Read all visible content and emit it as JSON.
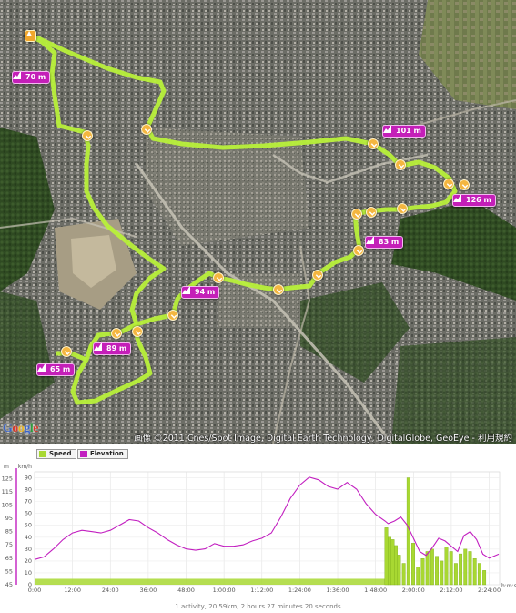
{
  "map": {
    "credit": "画像 ©2011 Cnes/Spot Image, Digital Earth Technology, DigitalGlobe, GeoEye - 利用規約",
    "logo": "Google",
    "route_color": "#b8f03a",
    "elevation_labels": [
      {
        "text": "70 m"
      },
      {
        "text": "101 m"
      },
      {
        "text": "126 m"
      },
      {
        "text": "83 m"
      },
      {
        "text": "94 m"
      },
      {
        "text": "89 m"
      },
      {
        "text": "65 m"
      }
    ],
    "icons": {
      "start": "start-icon",
      "km": "checkpoint-icon",
      "elevation": "elevation-icon"
    }
  },
  "chart": {
    "legend": {
      "speed": "Speed",
      "elevation": "Elevation"
    },
    "summary": "1 activity, 20.59km, 2 hours 27 minutes 20 seconds",
    "colors": {
      "speed": "#a8d832",
      "elevation": "#c21fc0",
      "elev_axis": "#c21fc0"
    }
  },
  "chart_data": {
    "type": "line",
    "x_label": "h:m:s",
    "x_ticks": [
      "0:00",
      "12:00",
      "24:00",
      "36:00",
      "48:00",
      "1:00:00",
      "1:12:00",
      "1:24:00",
      "1:36:00",
      "1:48:00",
      "2:00:00",
      "2:12:00",
      "2:24:00"
    ],
    "x_range_minutes": [
      0,
      147.3
    ],
    "elevation_axis": {
      "unit": "m",
      "ticks": [
        45,
        55,
        65,
        75,
        85,
        95,
        105,
        115,
        125
      ],
      "range": [
        45,
        130
      ]
    },
    "speed_axis": {
      "unit": "km/h",
      "ticks": [
        0,
        10,
        20,
        30,
        40,
        50,
        60,
        70,
        80,
        90
      ],
      "range": [
        0,
        95
      ]
    },
    "series": [
      {
        "name": "Elevation",
        "x_minutes": [
          0,
          3,
          6,
          9,
          12,
          15,
          18,
          21,
          24,
          27,
          30,
          33,
          36,
          39,
          42,
          45,
          48,
          51,
          54,
          57,
          60,
          63,
          66,
          69,
          72,
          75,
          78,
          81,
          84,
          87,
          90,
          93,
          96,
          99,
          102,
          105,
          108,
          111,
          112,
          114,
          116,
          118,
          120,
          122,
          124,
          126,
          128,
          130,
          132,
          134,
          136,
          138,
          140,
          142,
          144,
          146,
          147
        ],
        "values": [
          64,
          66,
          72,
          79,
          84,
          86,
          85,
          84,
          86,
          90,
          94,
          93,
          88,
          84,
          79,
          75,
          72,
          71,
          72,
          76,
          74,
          74,
          75,
          78,
          80,
          84,
          96,
          110,
          120,
          126,
          124,
          119,
          117,
          122,
          117,
          106,
          98,
          93,
          91,
          93,
          96,
          90,
          80,
          70,
          67,
          73,
          80,
          78,
          74,
          70,
          82,
          85,
          79,
          68,
          65,
          67,
          68
        ]
      },
      {
        "name": "Speed",
        "type": "bar",
        "baseline_kmh": 5,
        "spikes": [
          {
            "x_minutes": 111.5,
            "value": 48
          },
          {
            "x_minutes": 112.5,
            "value": 40
          },
          {
            "x_minutes": 113.5,
            "value": 38
          },
          {
            "x_minutes": 114.5,
            "value": 33
          },
          {
            "x_minutes": 115.5,
            "value": 25
          },
          {
            "x_minutes": 117.0,
            "value": 18
          },
          {
            "x_minutes": 118.5,
            "value": 90
          },
          {
            "x_minutes": 120.0,
            "value": 35
          },
          {
            "x_minutes": 121.5,
            "value": 15
          },
          {
            "x_minutes": 123.0,
            "value": 22
          },
          {
            "x_minutes": 124.5,
            "value": 28
          },
          {
            "x_minutes": 126.0,
            "value": 30
          },
          {
            "x_minutes": 127.5,
            "value": 24
          },
          {
            "x_minutes": 129.0,
            "value": 20
          },
          {
            "x_minutes": 130.5,
            "value": 32
          },
          {
            "x_minutes": 132.0,
            "value": 28
          },
          {
            "x_minutes": 133.5,
            "value": 18
          },
          {
            "x_minutes": 135.0,
            "value": 26
          },
          {
            "x_minutes": 136.5,
            "value": 30
          },
          {
            "x_minutes": 138.0,
            "value": 28
          },
          {
            "x_minutes": 139.5,
            "value": 22
          },
          {
            "x_minutes": 141.0,
            "value": 18
          },
          {
            "x_minutes": 142.5,
            "value": 12
          }
        ]
      }
    ]
  }
}
